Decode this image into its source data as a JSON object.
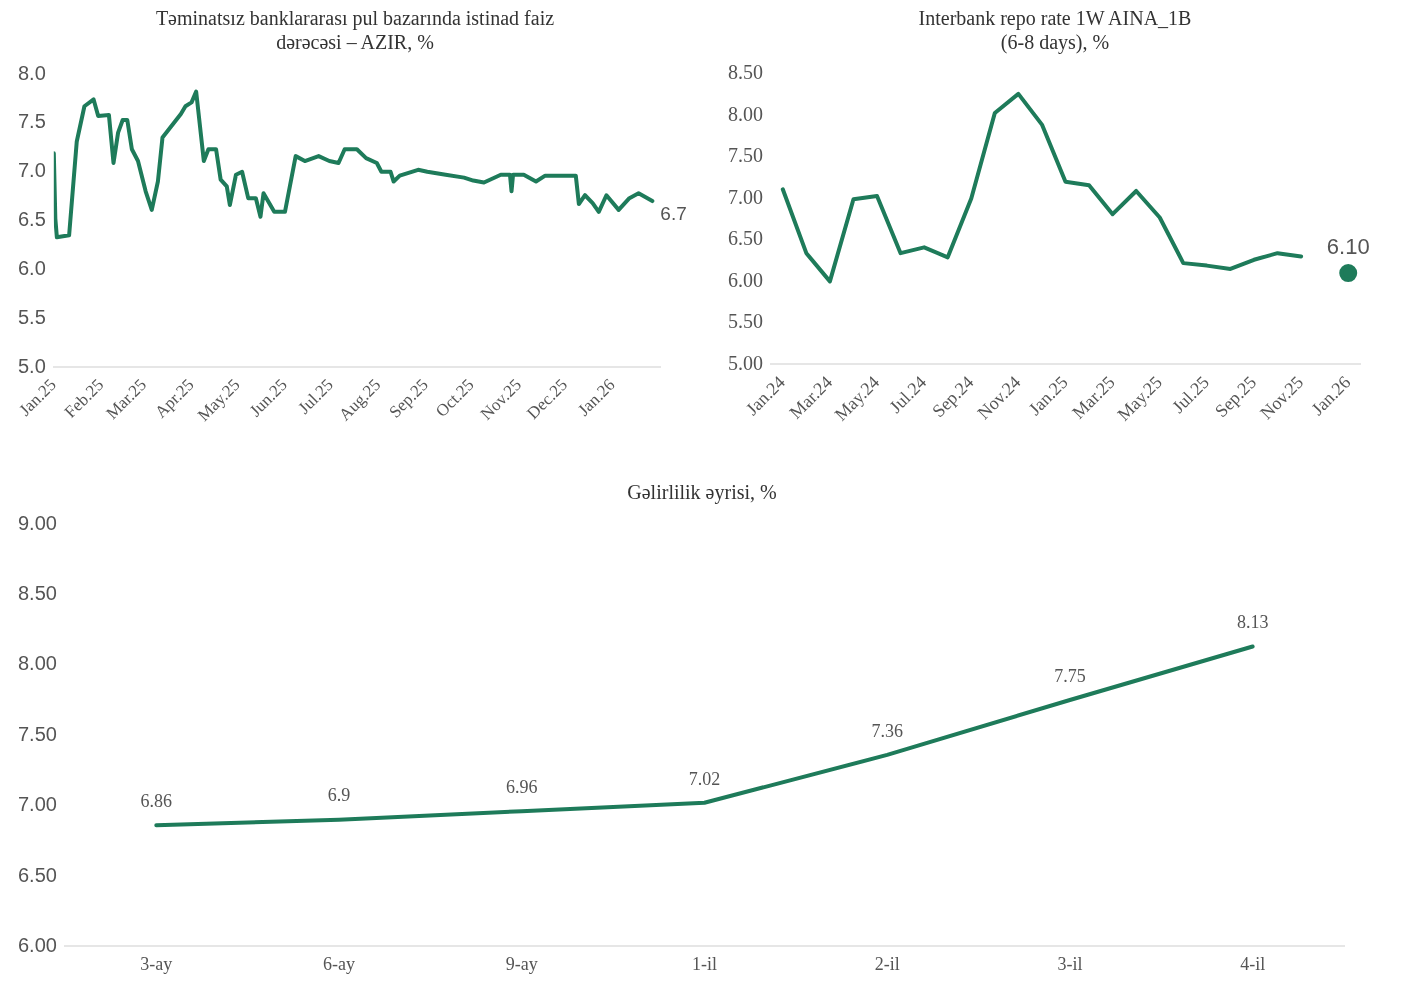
{
  "chart_data": [
    {
      "type": "line",
      "title": "Təminatsız banklararası pul bazarında istinad faiz dərəcəsi – AZIR, %",
      "xlim": [
        "2025-01-01",
        "2026-02-01"
      ],
      "ylim": [
        5,
        8
      ],
      "yticks": [
        {
          "value": 5,
          "label": "5.0"
        },
        {
          "value": 5.5,
          "label": "5.5"
        },
        {
          "value": 6,
          "label": "6.0"
        },
        {
          "value": 6.5,
          "label": "6.5"
        },
        {
          "value": 7,
          "label": "7.0"
        },
        {
          "value": 7.5,
          "label": "7.5"
        },
        {
          "value": 8,
          "label": "8.0"
        }
      ],
      "xticks": [
        {
          "value": "2025-01-01",
          "label": "Jan.25"
        },
        {
          "value": "2025-02-01",
          "label": "Feb.25"
        },
        {
          "value": "2025-03-01",
          "label": "Mar.25"
        },
        {
          "value": "2025-04-01",
          "label": "Apr.25"
        },
        {
          "value": "2025-05-01",
          "label": "May.25"
        },
        {
          "value": "2025-06-01",
          "label": "Jun.25"
        },
        {
          "value": "2025-07-01",
          "label": "Jul.25"
        },
        {
          "value": "2025-08-01",
          "label": "Aug.25"
        },
        {
          "value": "2025-09-01",
          "label": "Sep.25"
        },
        {
          "value": "2025-10-01",
          "label": "Oct.25"
        },
        {
          "value": "2025-11-01",
          "label": "Nov.25"
        },
        {
          "value": "2025-12-01",
          "label": "Dec.25"
        },
        {
          "value": "2026-01-01",
          "label": "Jan.26"
        }
      ],
      "x": [
        "2025-01-01",
        "2025-01-02",
        "2025-01-03",
        "2025-01-11",
        "2025-01-16",
        "2025-01-21",
        "2025-01-27",
        "2025-01-30",
        "2025-02-06",
        "2025-02-09",
        "2025-02-12",
        "2025-02-15",
        "2025-02-18",
        "2025-02-21",
        "2025-02-25",
        "2025-03-02",
        "2025-03-06",
        "2025-03-10",
        "2025-03-13",
        "2025-03-25",
        "2025-03-28",
        "2025-04-01",
        "2025-04-04",
        "2025-04-09",
        "2025-04-12",
        "2025-04-17",
        "2025-04-20",
        "2025-04-24",
        "2025-04-26",
        "2025-04-30",
        "2025-05-04",
        "2025-05-08",
        "2025-05-13",
        "2025-05-16",
        "2025-05-18",
        "2025-05-25",
        "2025-06-01",
        "2025-06-08",
        "2025-06-14",
        "2025-06-23",
        "2025-06-30",
        "2025-07-06",
        "2025-07-10",
        "2025-07-18",
        "2025-07-24",
        "2025-07-31",
        "2025-08-03",
        "2025-08-09",
        "2025-08-11",
        "2025-08-15",
        "2025-08-27",
        "2025-09-02",
        "2025-09-14",
        "2025-09-26",
        "2025-10-02",
        "2025-10-09",
        "2025-10-20",
        "2025-10-26",
        "2025-10-27",
        "2025-10-28",
        "2025-11-04",
        "2025-11-12",
        "2025-11-18",
        "2025-11-25",
        "2025-12-08",
        "2025-12-10",
        "2025-12-14",
        "2025-12-19",
        "2025-12-23",
        "2025-12-28",
        "2026-01-05",
        "2026-01-12",
        "2026-01-18",
        "2026-01-27"
      ],
      "series": [
        {
          "color": "#1e7b5a",
          "values": [
            7.19,
            6.52,
            6.33,
            6.35,
            7.31,
            7.67,
            7.74,
            7.57,
            7.58,
            7.09,
            7.4,
            7.53,
            7.53,
            7.23,
            7.11,
            6.8,
            6.61,
            6.9,
            7.35,
            7.59,
            7.67,
            7.71,
            7.82,
            7.11,
            7.23,
            7.23,
            6.92,
            6.85,
            6.66,
            6.97,
            7.0,
            6.73,
            6.73,
            6.54,
            6.78,
            6.59,
            6.59,
            7.16,
            7.11,
            7.16,
            7.11,
            7.09,
            7.23,
            7.23,
            7.14,
            7.09,
            7.0,
            7.0,
            6.9,
            6.96,
            7.02,
            7.0,
            6.97,
            6.94,
            6.91,
            6.89,
            6.97,
            6.97,
            6.8,
            6.97,
            6.97,
            6.9,
            6.96,
            6.96,
            6.96,
            6.67,
            6.76,
            6.68,
            6.59,
            6.76,
            6.61,
            6.73,
            6.78,
            6.7
          ],
          "value_labels": [
            null,
            null,
            null,
            null,
            null,
            null,
            null,
            null,
            null,
            null,
            null,
            null,
            null,
            null,
            null,
            null,
            null,
            null,
            null,
            null,
            null,
            null,
            null,
            null,
            null,
            null,
            null,
            null,
            null,
            null,
            null,
            null,
            null,
            null,
            null,
            null,
            null,
            null,
            null,
            null,
            null,
            null,
            null,
            null,
            null,
            null,
            null,
            null,
            null,
            null,
            null,
            null,
            null,
            null,
            null,
            null,
            null,
            null,
            null,
            null,
            null,
            null,
            null,
            null,
            null,
            null,
            null,
            null,
            null,
            null,
            null,
            null,
            null,
            "6.7"
          ]
        }
      ]
    },
    {
      "type": "line",
      "title": "Interbank repo rate 1W AINA_1B (6-8 days), %",
      "ylim": [
        5,
        8.5
      ],
      "yticks": [
        {
          "value": 5,
          "label": "5.00"
        },
        {
          "value": 5.5,
          "label": "5.50"
        },
        {
          "value": 6,
          "label": "6.00"
        },
        {
          "value": 6.5,
          "label": "6.50"
        },
        {
          "value": 7,
          "label": "7.00"
        },
        {
          "value": 7.5,
          "label": "7.50"
        },
        {
          "value": 8,
          "label": "8.00"
        },
        {
          "value": 8.5,
          "label": "8.50"
        }
      ],
      "categories": [
        "Jan.24",
        null,
        "Mar.24",
        null,
        "May.24",
        null,
        "Jul.24",
        null,
        "Sep.24",
        null,
        "Nov.24",
        null,
        "Jan.25",
        null,
        "Mar.25",
        null,
        "May.25",
        null,
        "Jul.25",
        null,
        "Sep.25",
        null,
        "Nov.25",
        null,
        "Jan.26"
      ],
      "series": [
        {
          "color": "#1e7b5a",
          "values": [
            7.11,
            6.34,
            6.0,
            6.99,
            7.03,
            6.34,
            6.41,
            6.29,
            7.0,
            8.03,
            8.26,
            7.89,
            7.2,
            7.16,
            6.81,
            7.09,
            6.77,
            6.22,
            6.19,
            6.15,
            6.26,
            6.34,
            6.3,
            null,
            null
          ]
        },
        {
          "type": "scatter",
          "marker": "circle",
          "color": "#1e7b5a",
          "values": [
            null,
            null,
            null,
            null,
            null,
            null,
            null,
            null,
            null,
            null,
            null,
            null,
            null,
            null,
            null,
            null,
            null,
            null,
            null,
            null,
            null,
            null,
            null,
            null,
            6.1
          ],
          "value_labels": [
            null,
            null,
            null,
            null,
            null,
            null,
            null,
            null,
            null,
            null,
            null,
            null,
            null,
            null,
            null,
            null,
            null,
            null,
            null,
            null,
            null,
            null,
            null,
            null,
            "6.10"
          ]
        }
      ]
    },
    {
      "type": "line",
      "title": "Gəlirlilik əyrisi, %",
      "ylim": [
        6,
        9
      ],
      "data_labels": true,
      "yticks": [
        {
          "value": 6,
          "label": "6.00"
        },
        {
          "value": 6.5,
          "label": "6.50"
        },
        {
          "value": 7,
          "label": "7.00"
        },
        {
          "value": 7.5,
          "label": "7.50"
        },
        {
          "value": 8,
          "label": "8.00"
        },
        {
          "value": 8.5,
          "label": "8.50"
        },
        {
          "value": 9,
          "label": "9.00"
        }
      ],
      "categories": [
        "3-ay",
        "6-ay",
        "9-ay",
        "1-il",
        "2-il",
        "3-il",
        "4-il"
      ],
      "series": [
        {
          "color": "#1e7b5a",
          "values": [
            6.86,
            6.9,
            6.96,
            7.02,
            7.36,
            7.75,
            8.13
          ]
        }
      ]
    }
  ]
}
